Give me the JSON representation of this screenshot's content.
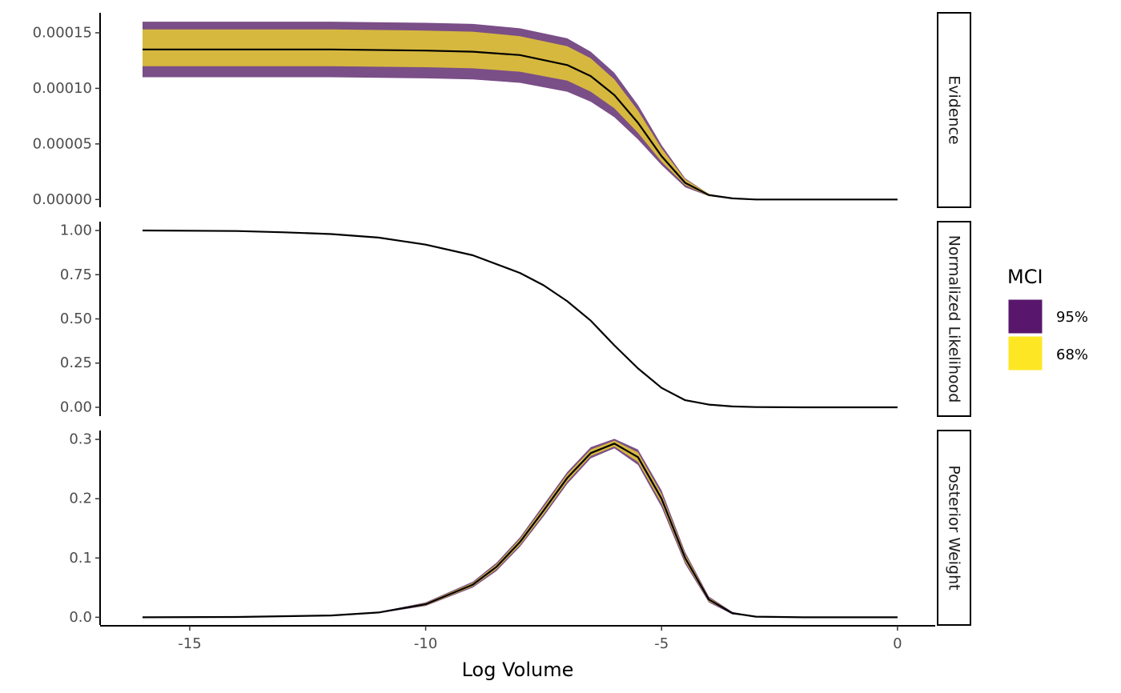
{
  "chart_data": {
    "type": "area",
    "xlabel": "Log Volume",
    "x_ticks": [
      "-15",
      "-10",
      "-5",
      "0"
    ],
    "x_tick_values": [
      -15,
      -10,
      -5,
      0
    ],
    "xlim": [
      -16.9,
      0.8
    ],
    "legend": {
      "title": "MCI",
      "placement": "right",
      "items": [
        {
          "label": "95%",
          "color": "#58176d"
        },
        {
          "label": "68%",
          "color": "#fde725"
        }
      ]
    },
    "band_display_colors": {
      "ci95": "#7a4e87",
      "ci68": "#d6b83f",
      "line": "#000000"
    },
    "panels": [
      {
        "strip": "Evidence",
        "y_ticks": [
          "0.00000",
          "0.00005",
          "0.00010",
          "0.00015"
        ],
        "y_tick_values": [
          0,
          5e-05,
          0.0001,
          0.00015
        ],
        "ylim": [
          -7e-06,
          0.000168
        ],
        "x": [
          -16,
          -14,
          -12,
          -10,
          -9,
          -8,
          -7,
          -6.5,
          -6,
          -5.5,
          -5,
          -4.5,
          -4,
          -3.5,
          -3,
          -2,
          -1,
          0
        ],
        "mean": [
          0.000135,
          0.000135,
          0.000135,
          0.000134,
          0.000133,
          0.00013,
          0.000121,
          0.000111,
          9.4e-05,
          6.9e-05,
          3.9e-05,
          1.5e-05,
          4e-06,
          1e-06,
          0,
          0,
          0,
          0
        ],
        "ci68_upper": [
          0.000153,
          0.000153,
          0.000153,
          0.000152,
          0.000151,
          0.000147,
          0.000138,
          0.000127,
          0.000108,
          8e-05,
          4.6e-05,
          1.8e-05,
          5e-06,
          1e-06,
          0,
          0,
          0,
          0
        ],
        "ci68_lower": [
          0.00012,
          0.00012,
          0.00012,
          0.000119,
          0.000118,
          0.000115,
          0.000107,
          9.7e-05,
          8.2e-05,
          6e-05,
          3.4e-05,
          1.3e-05,
          3e-06,
          1e-06,
          0,
          0,
          0,
          0
        ],
        "ci95_upper": [
          0.00016,
          0.00016,
          0.00016,
          0.000159,
          0.000158,
          0.000154,
          0.000145,
          0.000133,
          0.000114,
          8.5e-05,
          4.9e-05,
          1.9e-05,
          5e-06,
          1e-06,
          0,
          0,
          0,
          0
        ],
        "ci95_lower": [
          0.00011,
          0.00011,
          0.00011,
          0.000109,
          0.000108,
          0.000105,
          9.7e-05,
          8.8e-05,
          7.4e-05,
          5.4e-05,
          3.1e-05,
          1.1e-05,
          3e-06,
          5e-07,
          0,
          0,
          0,
          0
        ]
      },
      {
        "strip": "Normalized Likelihood",
        "y_ticks": [
          "0.00",
          "0.25",
          "0.50",
          "0.75",
          "1.00"
        ],
        "y_tick_values": [
          0,
          0.25,
          0.5,
          0.75,
          1
        ],
        "ylim": [
          -0.05,
          1.05
        ],
        "x": [
          -16,
          -14,
          -13,
          -12,
          -11,
          -10,
          -9,
          -8,
          -7.5,
          -7,
          -6.5,
          -6,
          -5.5,
          -5,
          -4.5,
          -4,
          -3.5,
          -3,
          -2,
          -1,
          0
        ],
        "mean": [
          1.0,
          0.997,
          0.99,
          0.98,
          0.96,
          0.92,
          0.86,
          0.76,
          0.69,
          0.6,
          0.49,
          0.35,
          0.22,
          0.11,
          0.04,
          0.015,
          0.005,
          0.001,
          0,
          0,
          0
        ]
      },
      {
        "strip": "Posterior Weight",
        "y_ticks": [
          "0.0",
          "0.1",
          "0.2",
          "0.3"
        ],
        "y_tick_values": [
          0,
          0.1,
          0.2,
          0.3
        ],
        "ylim": [
          -0.013,
          0.315
        ],
        "x": [
          -16,
          -14,
          -12,
          -11,
          -10,
          -9,
          -8.5,
          -8,
          -7.5,
          -7,
          -6.5,
          -6,
          -5.5,
          -5,
          -4.5,
          -4,
          -3.5,
          -3,
          -2,
          -1,
          0
        ],
        "mean": [
          0,
          0.0005,
          0.003,
          0.008,
          0.022,
          0.055,
          0.085,
          0.127,
          0.18,
          0.235,
          0.277,
          0.293,
          0.27,
          0.2,
          0.1,
          0.03,
          0.007,
          0.001,
          0,
          0,
          0
        ],
        "ci68_upper": [
          0,
          0.0006,
          0.0033,
          0.0085,
          0.024,
          0.058,
          0.089,
          0.132,
          0.186,
          0.241,
          0.283,
          0.298,
          0.278,
          0.208,
          0.106,
          0.033,
          0.008,
          0.0012,
          0,
          0,
          0
        ],
        "ci68_lower": [
          0,
          0.0004,
          0.0027,
          0.0075,
          0.02,
          0.052,
          0.081,
          0.122,
          0.174,
          0.229,
          0.272,
          0.288,
          0.262,
          0.192,
          0.094,
          0.027,
          0.006,
          0.0008,
          0,
          0,
          0
        ],
        "ci95_upper": [
          0,
          0.0007,
          0.0035,
          0.009,
          0.025,
          0.06,
          0.092,
          0.135,
          0.19,
          0.245,
          0.287,
          0.301,
          0.283,
          0.214,
          0.11,
          0.035,
          0.009,
          0.0014,
          0,
          0,
          0
        ],
        "ci95_lower": [
          0,
          0.0003,
          0.0025,
          0.007,
          0.019,
          0.05,
          0.078,
          0.119,
          0.17,
          0.225,
          0.268,
          0.285,
          0.257,
          0.186,
          0.09,
          0.025,
          0.005,
          0.0006,
          0,
          0,
          0
        ]
      }
    ]
  }
}
